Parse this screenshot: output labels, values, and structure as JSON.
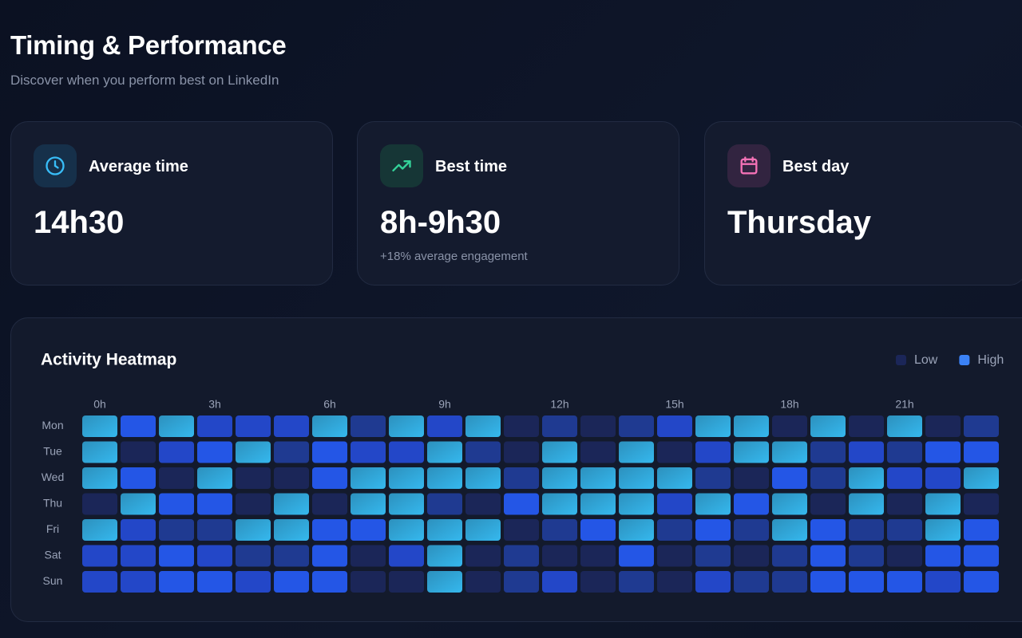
{
  "header": {
    "title": "Timing & Performance",
    "subtitle": "Discover when you perform best on LinkedIn"
  },
  "cards": [
    {
      "label": "Average time",
      "value": "14h30"
    },
    {
      "label": "Best time",
      "value": "8h-9h30",
      "note": "+18% average engagement"
    },
    {
      "label": "Best day",
      "value": "Thursday"
    }
  ],
  "chart_data": {
    "type": "heatmap",
    "title": "Activity Heatmap",
    "legend": [
      {
        "name": "Low",
        "color": "#1b2658"
      },
      {
        "name": "High",
        "color": "#3b82f6"
      }
    ],
    "x": [
      "0h",
      null,
      null,
      "3h",
      null,
      null,
      "6h",
      null,
      null,
      "9h",
      null,
      null,
      "12h",
      null,
      null,
      "15h",
      null,
      null,
      "18h",
      null,
      null,
      "21h",
      null,
      null
    ],
    "y": [
      "Mon",
      "Tue",
      "Wed",
      "Thu",
      "Fri",
      "Sat",
      "Sun"
    ],
    "zlim": [
      1,
      5
    ],
    "colors": [
      "#1b2658",
      "#1f3a91",
      "#2347c8",
      "#2456e6",
      "#35b8ee"
    ],
    "values": [
      [
        5,
        4,
        5,
        3,
        3,
        3,
        5,
        2,
        5,
        3,
        5,
        1,
        2,
        1,
        2,
        3,
        5,
        5,
        1,
        5,
        1,
        5,
        1,
        2
      ],
      [
        5,
        1,
        3,
        4,
        5,
        2,
        4,
        3,
        3,
        5,
        2,
        1,
        5,
        1,
        5,
        1,
        3,
        5,
        5,
        2,
        3,
        2,
        4,
        4
      ],
      [
        5,
        4,
        1,
        5,
        1,
        1,
        4,
        5,
        5,
        5,
        5,
        2,
        5,
        5,
        5,
        5,
        2,
        1,
        4,
        2,
        5,
        3,
        3,
        5
      ],
      [
        1,
        5,
        4,
        4,
        1,
        5,
        1,
        5,
        5,
        2,
        1,
        4,
        5,
        5,
        5,
        3,
        5,
        4,
        5,
        1,
        5,
        1,
        5,
        1
      ],
      [
        5,
        3,
        2,
        2,
        5,
        5,
        4,
        4,
        5,
        5,
        5,
        1,
        2,
        4,
        5,
        2,
        4,
        2,
        5,
        4,
        2,
        2,
        5,
        4
      ],
      [
        3,
        3,
        4,
        3,
        2,
        2,
        4,
        1,
        3,
        5,
        1,
        2,
        1,
        1,
        4,
        1,
        2,
        1,
        2,
        4,
        2,
        1,
        4,
        4
      ],
      [
        3,
        3,
        4,
        4,
        3,
        4,
        4,
        1,
        1,
        5,
        1,
        2,
        3,
        1,
        2,
        1,
        3,
        2,
        2,
        4,
        4,
        4,
        3,
        4
      ]
    ]
  }
}
